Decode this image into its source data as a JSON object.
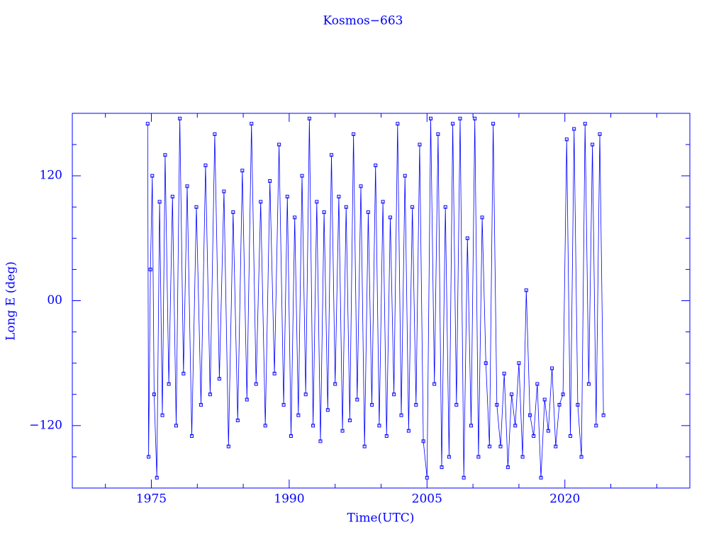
{
  "chart_data": {
    "type": "line",
    "title": "Kosmos−663",
    "x_label": "Time(UTC)",
    "y_label": "Long E (deg)",
    "color": "#0000ff",
    "xlim": [
      1966.4,
      2033.6
    ],
    "xticks": [
      1975,
      1990,
      2005,
      2020
    ],
    "xminorticks": [
      1970,
      1980,
      1985,
      1995,
      2000,
      2010,
      2015,
      2025,
      2030
    ],
    "ylim": [
      -180,
      180
    ],
    "yticks": [
      {
        "value": -120,
        "label": "−120"
      },
      {
        "value": 0,
        "label": "00"
      },
      120
    ],
    "yminorticks": [
      -150,
      -90,
      -60,
      -30,
      30,
      60,
      90,
      150
    ],
    "series": [
      {
        "name": "Kosmos−663",
        "color": "#0000ff",
        "x": [
          1974.6,
          1974.7,
          1974.9,
          1975.1,
          1975.3,
          1975.6,
          1975.9,
          1976.2,
          1976.5,
          1976.9,
          1977.3,
          1977.7,
          1978.1,
          1978.5,
          1978.9,
          1979.4,
          1979.9,
          1980.4,
          1980.9,
          1981.4,
          1981.9,
          1982.4,
          1982.9,
          1983.4,
          1983.9,
          1984.4,
          1984.9,
          1985.4,
          1985.9,
          1986.4,
          1986.9,
          1987.4,
          1987.9,
          1988.4,
          1988.9,
          1989.4,
          1989.8,
          1990.2,
          1990.6,
          1991.0,
          1991.4,
          1991.8,
          1992.2,
          1992.6,
          1993.0,
          1993.4,
          1993.8,
          1994.2,
          1994.6,
          1995.0,
          1995.4,
          1995.8,
          1996.2,
          1996.6,
          1997.0,
          1997.4,
          1997.8,
          1998.2,
          1998.6,
          1999.0,
          1999.4,
          1999.8,
          2000.2,
          2000.6,
          2001.0,
          2001.4,
          2001.8,
          2002.2,
          2002.6,
          2003.0,
          2003.4,
          2003.8,
          2004.2,
          2004.6,
          2005.0,
          2005.4,
          2005.8,
          2006.2,
          2006.6,
          2007.0,
          2007.4,
          2007.8,
          2008.2,
          2008.6,
          2009.0,
          2009.4,
          2009.8,
          2010.2,
          2010.6,
          2011.0,
          2011.4,
          2011.8,
          2012.2,
          2012.6,
          2013.0,
          2013.4,
          2013.8,
          2014.2,
          2014.6,
          2015.0,
          2015.4,
          2015.8,
          2016.2,
          2016.6,
          2017.0,
          2017.4,
          2017.8,
          2018.2,
          2018.6,
          2019.0,
          2019.4,
          2019.8,
          2020.2,
          2020.6,
          2021.0,
          2021.4,
          2021.8,
          2022.2,
          2022.6,
          2023.0,
          2023.4,
          2023.8,
          2024.2
        ],
        "values": [
          170,
          -150,
          30,
          120,
          -90,
          -170,
          95,
          -110,
          140,
          -80,
          100,
          -120,
          175,
          -70,
          110,
          -130,
          90,
          -100,
          130,
          -90,
          160,
          -75,
          105,
          -140,
          85,
          -115,
          125,
          -95,
          170,
          -80,
          95,
          -120,
          115,
          -70,
          150,
          -100,
          100,
          -130,
          80,
          -110,
          120,
          -90,
          175,
          -120,
          95,
          -135,
          85,
          -105,
          140,
          -80,
          100,
          -125,
          90,
          -115,
          160,
          -95,
          110,
          -140,
          85,
          -100,
          130,
          -120,
          95,
          -130,
          80,
          -90,
          170,
          -110,
          120,
          -125,
          90,
          -100,
          150,
          -135,
          -170,
          175,
          -80,
          160,
          -160,
          90,
          -150,
          170,
          -100,
          175,
          -170,
          60,
          -120,
          175,
          -150,
          80,
          -60,
          -140,
          170,
          -100,
          -140,
          -70,
          -160,
          -90,
          -120,
          -60,
          -150,
          10,
          -110,
          -130,
          -80,
          -170,
          -95,
          -125,
          -65,
          -140,
          -100,
          -90,
          155,
          -130,
          165,
          -100,
          -150,
          170,
          -80,
          150,
          -120,
          160,
          -110
        ]
      }
    ]
  }
}
